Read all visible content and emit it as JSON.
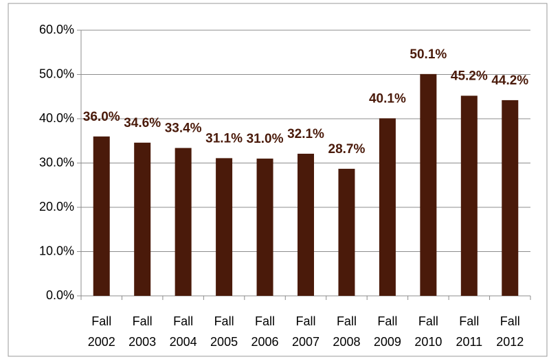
{
  "chart_data": {
    "type": "bar",
    "categories": [
      "Fall 2002",
      "Fall 2003",
      "Fall 2004",
      "Fall 2005",
      "Fall 2006",
      "Fall 2007",
      "Fall 2008",
      "Fall 2009",
      "Fall 2010",
      "Fall 2011",
      "Fall 2012"
    ],
    "values": [
      36.0,
      34.6,
      33.4,
      31.1,
      31.0,
      32.1,
      28.7,
      40.1,
      50.1,
      45.2,
      44.2
    ],
    "value_labels": [
      "36.0%",
      "34.6%",
      "33.4%",
      "31.1%",
      "31.0%",
      "32.1%",
      "28.7%",
      "40.1%",
      "50.1%",
      "45.2%",
      "44.2%"
    ],
    "color": "#4a1a0a",
    "ylim": [
      0,
      60
    ],
    "yticks": [
      {
        "value": 0,
        "label": "0.0%"
      },
      {
        "value": 10,
        "label": "10.0%"
      },
      {
        "value": 20,
        "label": "20.0%"
      },
      {
        "value": 30,
        "label": "30.0%"
      },
      {
        "value": 40,
        "label": "40.0%"
      },
      {
        "value": 50,
        "label": "50.0%"
      },
      {
        "value": 60,
        "label": "60.0%"
      }
    ],
    "grid": true
  }
}
